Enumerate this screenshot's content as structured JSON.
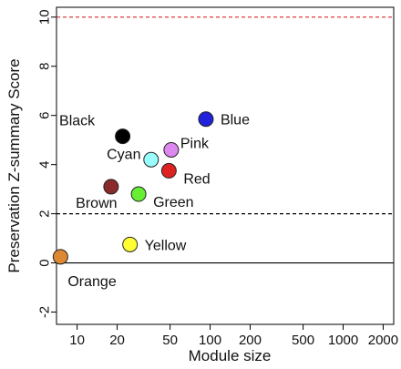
{
  "chart_data": {
    "type": "scatter",
    "title": "",
    "xlabel": "Module size",
    "ylabel": "Preservation Z-summary Score",
    "xscale": "log",
    "xlim": [
      7,
      2400
    ],
    "ylim": [
      -2.5,
      10.4
    ],
    "xticks": [
      10,
      20,
      50,
      100,
      200,
      500,
      1000,
      2000
    ],
    "xtick_labels": [
      "10",
      "20",
      "50",
      "100",
      "200",
      "500",
      "1000",
      "2000"
    ],
    "yticks": [
      -2,
      0,
      2,
      4,
      6,
      8,
      10
    ],
    "ytick_labels": [
      "-2",
      "0",
      "2",
      "4",
      "6",
      "8",
      "10"
    ],
    "grid": false,
    "legend": "none",
    "reference_lines": [
      {
        "y": 10,
        "style": "dashed",
        "color": "#d62728"
      },
      {
        "y": 2,
        "style": "dashed",
        "color": "#000000"
      },
      {
        "y": 0,
        "style": "solid",
        "color": "#000000"
      }
    ],
    "points": [
      {
        "label": "Black",
        "x": 22,
        "y": 5.15,
        "color": "#000000",
        "label_pos": "upper-left"
      },
      {
        "label": "Blue",
        "x": 93,
        "y": 5.85,
        "color": "#2222dd",
        "label_pos": "right"
      },
      {
        "label": "Pink",
        "x": 51,
        "y": 4.6,
        "color": "#dd88ee",
        "label_pos": "upper-right"
      },
      {
        "label": "Cyan",
        "x": 36,
        "y": 4.2,
        "color": "#99ffff",
        "label_pos": "left"
      },
      {
        "label": "Red",
        "x": 49,
        "y": 3.75,
        "color": "#dd2222",
        "label_pos": "lower-right"
      },
      {
        "label": "Brown",
        "x": 18,
        "y": 3.1,
        "color": "#8b2a2a",
        "label_pos": "below"
      },
      {
        "label": "Green",
        "x": 29,
        "y": 2.8,
        "color": "#66ee33",
        "label_pos": "lower-right"
      },
      {
        "label": "Yellow",
        "x": 25,
        "y": 0.75,
        "color": "#ffff33",
        "label_pos": "right"
      },
      {
        "label": "Orange",
        "x": 7.5,
        "y": 0.25,
        "color": "#dd8833",
        "label_pos": "below-right"
      }
    ]
  }
}
